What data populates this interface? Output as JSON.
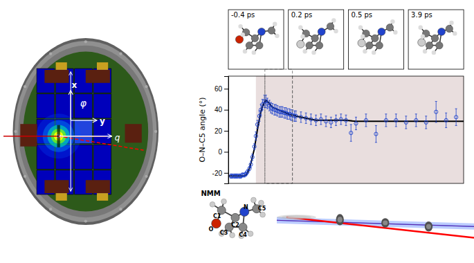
{
  "chart_data": {
    "type": "scatter",
    "ylabel": "O–N–C5 angle (°)",
    "xlim": [
      -0.55,
      4.15
    ],
    "ylim": [
      -30,
      72
    ],
    "yticks": [
      -20,
      0,
      20,
      40,
      60
    ],
    "tick_labels": "y",
    "grid": false,
    "series": [
      {
        "type": "span",
        "color": "#c0a0a0",
        "x": [
          0.0,
          4.15
        ]
      },
      {
        "type": "vline",
        "color": "#555555",
        "line_style": "dashed",
        "x": [
          0.18,
          0.73
        ]
      },
      {
        "type": "line",
        "color": "#000000",
        "line_style": "solid",
        "x": [
          -0.55,
          -0.5,
          -0.45,
          -0.4,
          -0.35,
          -0.3,
          -0.25,
          -0.2,
          -0.17,
          -0.13,
          -0.1,
          -0.07,
          -0.03,
          0.0,
          0.03,
          0.07,
          0.1,
          0.13,
          0.17,
          0.2,
          0.23,
          0.27,
          0.3,
          0.35,
          0.4,
          0.45,
          0.5,
          0.55,
          0.6,
          0.65,
          0.7,
          0.75,
          0.8,
          0.9,
          1.0,
          1.2,
          1.5,
          1.8,
          2.0,
          2.5,
          3.0,
          3.5,
          4.0,
          4.15
        ],
        "values": [
          -23,
          -23,
          -23,
          -23,
          -23,
          -23,
          -23,
          -22,
          -20,
          -16,
          -11,
          -5,
          3,
          12,
          21,
          31,
          38,
          43,
          47,
          49,
          48,
          46,
          44,
          42,
          41,
          40,
          39,
          38,
          37,
          36,
          35,
          35,
          34,
          33,
          32,
          30,
          30,
          30,
          29,
          29,
          29,
          29,
          29,
          29
        ]
      },
      {
        "type": "scatter",
        "color": "#1a3fcc",
        "marker": "circle",
        "x": [
          -0.5,
          -0.47,
          -0.43,
          -0.4,
          -0.37,
          -0.33,
          -0.3,
          -0.27,
          -0.23,
          -0.2,
          -0.17,
          -0.13,
          -0.1,
          -0.07,
          -0.03,
          0.0,
          0.03,
          0.07,
          0.1,
          0.13,
          0.17,
          0.2,
          0.23,
          0.27,
          0.3,
          0.33,
          0.37,
          0.4,
          0.43,
          0.47,
          0.5,
          0.53,
          0.57,
          0.6,
          0.63,
          0.67,
          0.7,
          0.73,
          0.77,
          0.8,
          0.9,
          1.0,
          1.1,
          1.2,
          1.3,
          1.4,
          1.5,
          1.6,
          1.7,
          1.8,
          1.9,
          2.0,
          2.2,
          2.4,
          2.6,
          2.8,
          3.0,
          3.2,
          3.4,
          3.6,
          3.8,
          4.0
        ],
        "values": [
          -23,
          -23,
          -23,
          -23,
          -23,
          -23,
          -23,
          -22,
          -22,
          -21,
          -19,
          -16,
          -12,
          -5,
          5,
          15,
          26,
          34,
          40,
          45,
          48,
          48,
          46,
          44,
          42,
          41,
          40,
          40,
          39,
          38,
          38,
          38,
          37,
          37,
          36,
          36,
          35,
          35,
          34,
          34,
          33,
          32,
          31,
          30,
          31,
          29,
          28,
          30,
          31,
          30,
          18,
          27,
          30,
          17,
          30,
          30,
          28,
          30,
          28,
          38,
          30,
          33
        ],
        "errors": [
          2,
          2,
          2,
          2,
          2,
          2,
          2,
          2,
          2,
          2,
          2,
          2,
          3,
          3,
          3,
          4,
          4,
          5,
          5,
          5,
          6,
          6,
          5,
          5,
          5,
          5,
          5,
          5,
          5,
          5,
          5,
          5,
          5,
          5,
          5,
          5,
          5,
          5,
          5,
          5,
          5,
          5,
          5,
          5,
          5,
          5,
          5,
          5,
          5,
          5,
          8,
          6,
          6,
          8,
          6,
          6,
          6,
          6,
          6,
          10,
          7,
          8
        ]
      }
    ],
    "annotations": [
      "-0.4 ps",
      "0.2 ps",
      "0.5 ps",
      "3.9 ps",
      "NMM",
      "C1",
      "C2",
      "C3",
      "C4",
      "N",
      "C5",
      "O",
      "x",
      "y",
      "φ",
      "q"
    ]
  }
}
